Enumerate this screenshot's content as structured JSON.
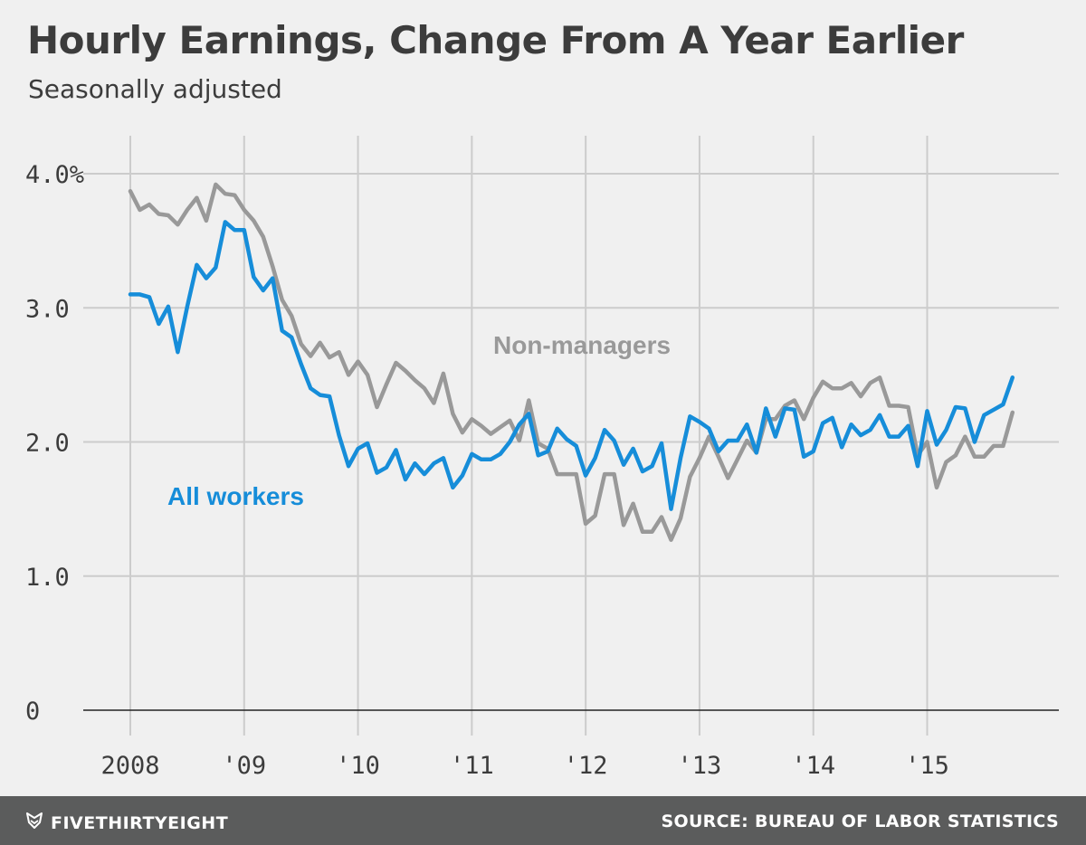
{
  "header": {
    "title": "Hourly Earnings, Change From A Year Earlier",
    "subtitle": "Seasonally adjusted"
  },
  "footer": {
    "brand": "FIVETHIRTYEIGHT",
    "brand_icon": "fox-logo-icon",
    "source": "SOURCE: BUREAU OF LABOR STATISTICS"
  },
  "colors": {
    "background": "#f0f0f0",
    "all_workers": "#168dd9",
    "non_managers": "#999999",
    "grid": "#cccccc",
    "footer": "#5b5c5c"
  },
  "chart_data": {
    "type": "line",
    "title": "Hourly Earnings, Change From A Year Earlier",
    "subtitle": "Seasonally adjusted",
    "xlabel": "",
    "ylabel": "",
    "ylim": [
      0,
      4.0
    ],
    "xlim": [
      2008.0,
      2015.95
    ],
    "grid": true,
    "y_ticks": [
      {
        "value": 4.0,
        "label": "4.0%"
      },
      {
        "value": 3.0,
        "label": "3.0"
      },
      {
        "value": 2.0,
        "label": "2.0"
      },
      {
        "value": 1.0,
        "label": "1.0"
      },
      {
        "value": 0,
        "label": "0"
      }
    ],
    "x_ticks": [
      {
        "value": 2008,
        "label": "2008"
      },
      {
        "value": 2009,
        "label": "'09"
      },
      {
        "value": 2010,
        "label": "'10"
      },
      {
        "value": 2011,
        "label": "'11"
      },
      {
        "value": 2012,
        "label": "'12"
      },
      {
        "value": 2013,
        "label": "'13"
      },
      {
        "value": 2014,
        "label": "'14"
      },
      {
        "value": 2015,
        "label": "'15"
      }
    ],
    "x_start": "2008-01",
    "x_step": "month",
    "series": [
      {
        "name": "All workers",
        "color": "#168dd9",
        "label_position": "left-middle",
        "values": [
          3.1,
          3.1,
          3.08,
          2.88,
          3.01,
          2.67,
          3.01,
          3.32,
          3.22,
          3.3,
          3.64,
          3.58,
          3.58,
          3.23,
          3.13,
          3.22,
          2.83,
          2.78,
          2.58,
          2.4,
          2.35,
          2.34,
          2.05,
          1.82,
          1.95,
          1.99,
          1.77,
          1.81,
          1.94,
          1.72,
          1.84,
          1.76,
          1.84,
          1.88,
          1.66,
          1.75,
          1.91,
          1.87,
          1.87,
          1.91,
          2.0,
          2.13,
          2.21,
          1.9,
          1.93,
          2.1,
          2.02,
          1.97,
          1.75,
          1.88,
          2.09,
          2.01,
          1.83,
          1.95,
          1.78,
          1.82,
          1.99,
          1.5,
          1.88,
          2.19,
          2.15,
          2.1,
          1.93,
          2.01,
          2.01,
          2.13,
          1.92,
          2.25,
          2.04,
          2.25,
          2.24,
          1.89,
          1.93,
          2.14,
          2.18,
          1.96,
          2.13,
          2.05,
          2.09,
          2.2,
          2.04,
          2.04,
          2.12,
          1.82,
          2.23,
          1.98,
          2.09,
          2.26,
          2.25,
          2.0,
          2.2,
          2.24,
          2.28,
          2.48
        ]
      },
      {
        "name": "Non-managers",
        "color": "#999999",
        "label_position": "center-top",
        "values": [
          3.87,
          3.73,
          3.77,
          3.7,
          3.69,
          3.62,
          3.73,
          3.82,
          3.65,
          3.92,
          3.85,
          3.84,
          3.73,
          3.65,
          3.53,
          3.31,
          3.06,
          2.94,
          2.73,
          2.64,
          2.74,
          2.63,
          2.67,
          2.5,
          2.6,
          2.5,
          2.26,
          2.43,
          2.59,
          2.53,
          2.46,
          2.4,
          2.29,
          2.51,
          2.21,
          2.07,
          2.17,
          2.12,
          2.06,
          2.11,
          2.16,
          2.01,
          2.31,
          1.99,
          1.95,
          1.76,
          1.76,
          1.76,
          1.39,
          1.45,
          1.76,
          1.76,
          1.38,
          1.54,
          1.33,
          1.33,
          1.44,
          1.27,
          1.43,
          1.74,
          1.88,
          2.04,
          1.89,
          1.73,
          1.87,
          2.01,
          1.92,
          2.17,
          2.17,
          2.27,
          2.31,
          2.17,
          2.33,
          2.45,
          2.4,
          2.4,
          2.44,
          2.34,
          2.44,
          2.48,
          2.27,
          2.27,
          2.26,
          1.9,
          2.0,
          1.66,
          1.85,
          1.9,
          2.04,
          1.89,
          1.89,
          1.97,
          1.97,
          2.22
        ]
      }
    ]
  }
}
